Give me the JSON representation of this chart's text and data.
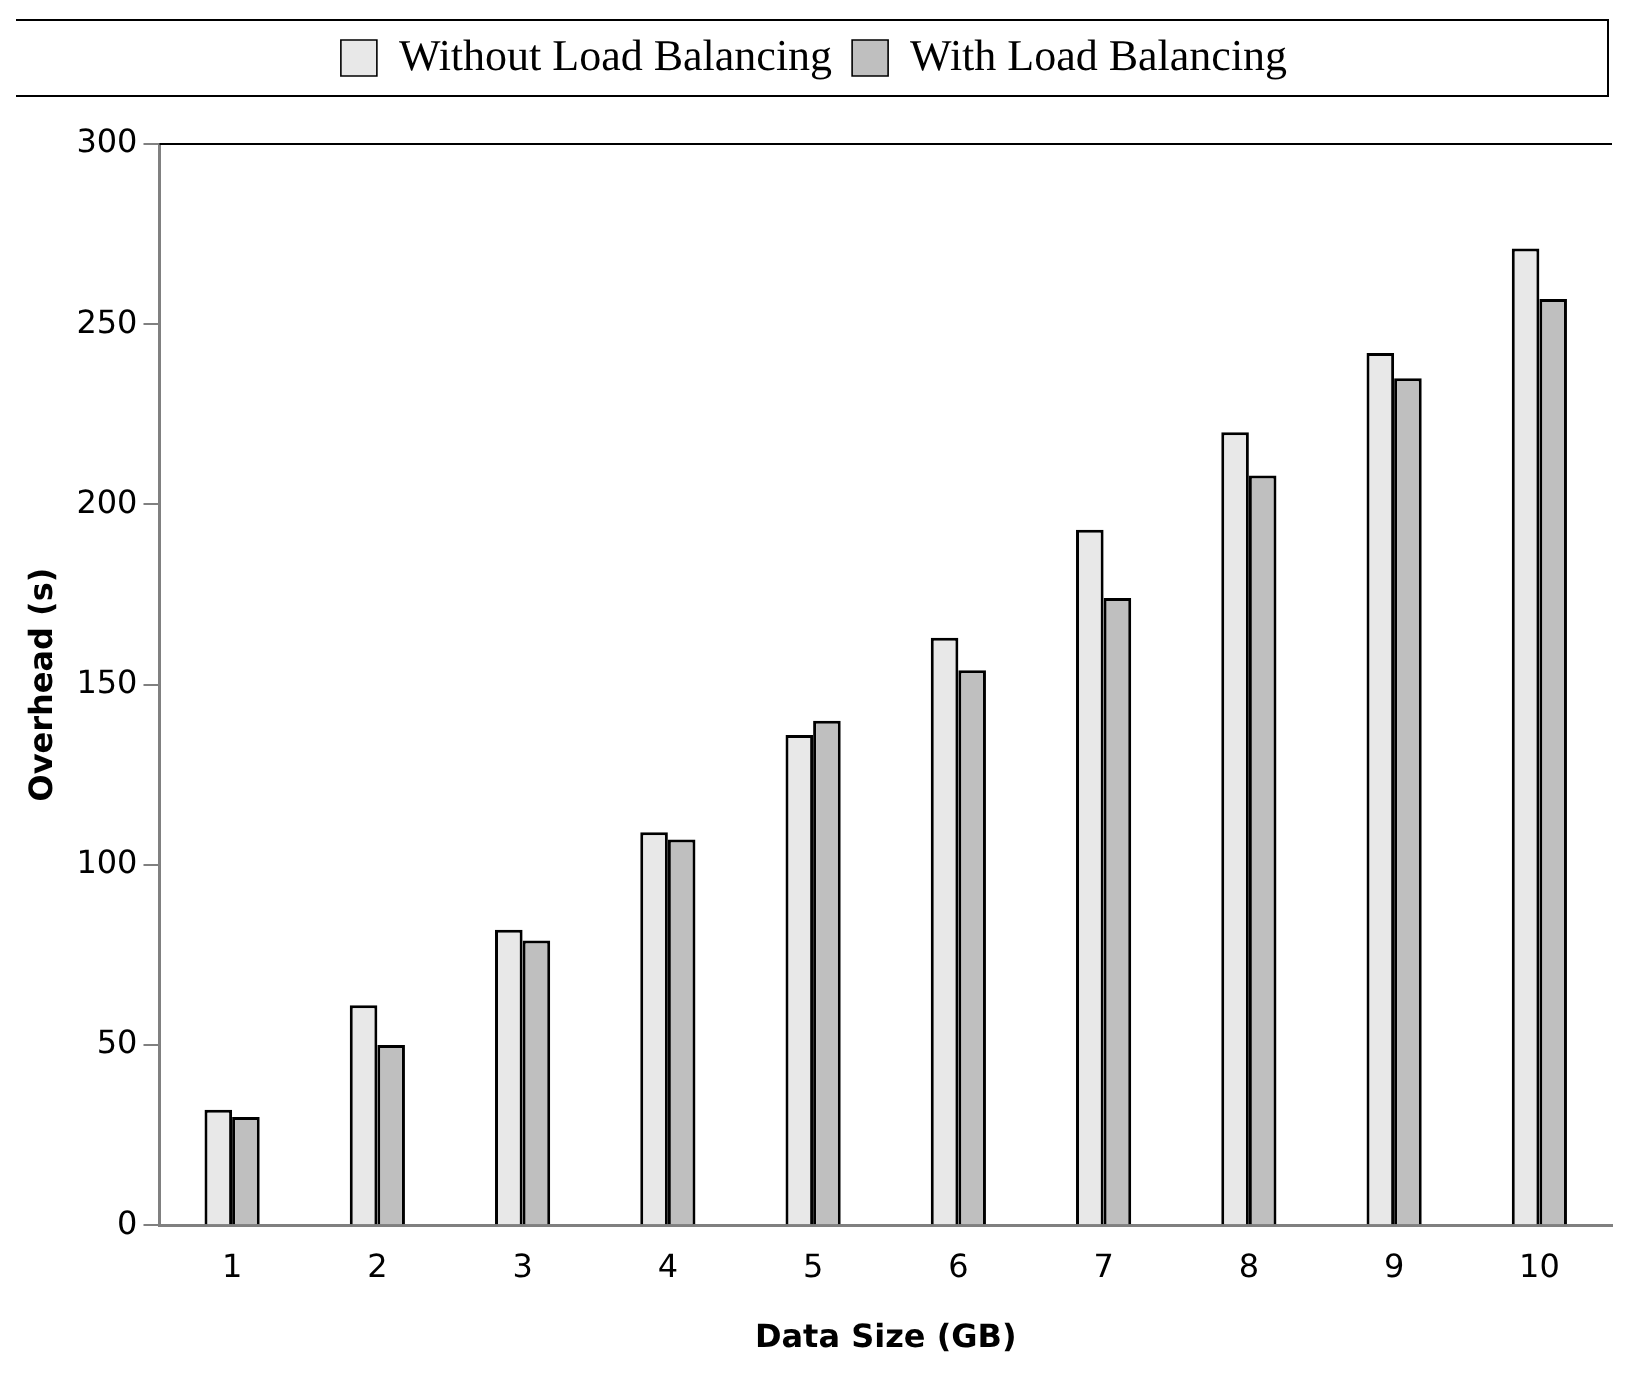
{
  "chart_data": {
    "type": "bar",
    "xlabel": "Data Size (GB)",
    "ylabel": "Overhead (s)",
    "categories": [
      "1",
      "2",
      "3",
      "4",
      "5",
      "6",
      "7",
      "8",
      "9",
      "10"
    ],
    "series": [
      {
        "name": "Without Load Balancing",
        "color": "#e8e8e8",
        "values": [
          32,
          61,
          82,
          109,
          136,
          163,
          193,
          220,
          242,
          271
        ]
      },
      {
        "name": "With Load Balancing",
        "color": "#bfbfbf",
        "values": [
          30,
          50,
          79,
          107,
          140,
          154,
          174,
          208,
          235,
          257
        ]
      }
    ],
    "ylim": [
      0,
      300
    ],
    "yticks": [
      0,
      50,
      100,
      150,
      200,
      250,
      300
    ],
    "grid": false,
    "legend": "top"
  }
}
